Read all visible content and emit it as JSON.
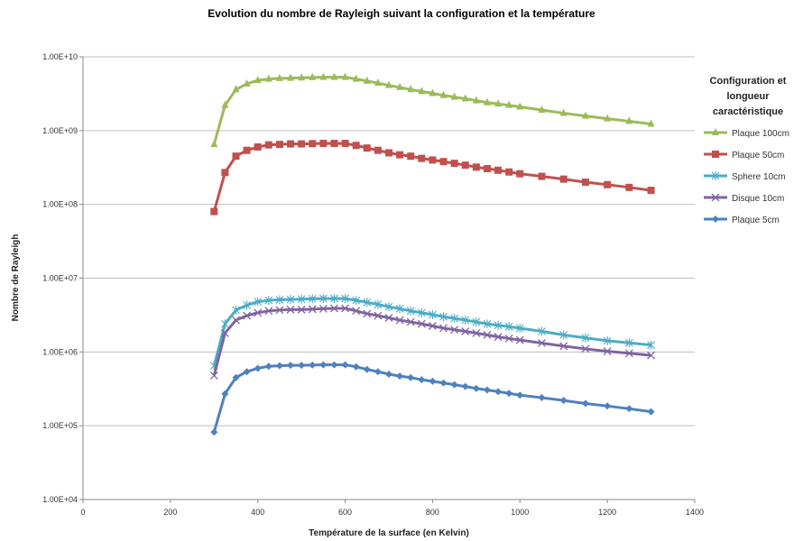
{
  "chart_data": {
    "type": "line",
    "title": "Evolution du nombre de Rayleigh suivant la configuration et la température",
    "xlabel": "Température de la surface (en Kelvin)",
    "ylabel": "Nombre de Rayleigh",
    "xlim": [
      0,
      1400
    ],
    "ylim": [
      10000,
      10000000000
    ],
    "y_scale": "log",
    "grid": "horizontal",
    "legend_position": "right",
    "legend_title": [
      "Configuration et",
      "longueur",
      "caractéristique"
    ],
    "xticks": [
      0,
      200,
      400,
      600,
      800,
      1000,
      1200,
      1400
    ],
    "xtick_labels": [
      "0",
      "200",
      "400",
      "600",
      "800",
      "1000",
      "1200",
      "1400"
    ],
    "yticks": [
      10000,
      100000,
      1000000,
      10000000,
      100000000,
      1000000000,
      10000000000
    ],
    "ytick_labels": [
      "1.00E+04",
      "1.00E+05",
      "1.00E+06",
      "1.00E+07",
      "1.00E+08",
      "1.00E+09",
      "1.00E+10"
    ],
    "x": [
      300,
      325,
      350,
      375,
      400,
      425,
      450,
      475,
      500,
      525,
      550,
      575,
      600,
      625,
      650,
      675,
      700,
      725,
      750,
      775,
      800,
      825,
      850,
      875,
      900,
      925,
      950,
      975,
      1000,
      1050,
      1100,
      1150,
      1200,
      1250,
      1300
    ],
    "series": [
      {
        "name": "Plaque 100cm",
        "color": "#9BBB59",
        "marker": "triangle",
        "values": [
          650000000,
          2200000000,
          3600000000,
          4300000000,
          4800000000,
          5000000000,
          5100000000,
          5150000000,
          5200000000,
          5250000000,
          5300000000,
          5300000000,
          5300000000,
          5000000000,
          4700000000,
          4400000000,
          4100000000,
          3850000000,
          3600000000,
          3400000000,
          3200000000,
          3000000000,
          2850000000,
          2700000000,
          2550000000,
          2400000000,
          2300000000,
          2200000000,
          2100000000,
          1900000000,
          1720000000,
          1580000000,
          1450000000,
          1340000000,
          1230000000
        ]
      },
      {
        "name": "Plaque 50cm",
        "color": "#C0504D",
        "marker": "square",
        "values": [
          80000000,
          270000000,
          450000000,
          540000000,
          600000000,
          640000000,
          650000000,
          660000000,
          660000000,
          665000000,
          670000000,
          670000000,
          670000000,
          630000000,
          580000000,
          540000000,
          500000000,
          470000000,
          450000000,
          420000000,
          400000000,
          380000000,
          360000000,
          340000000,
          320000000,
          305000000,
          290000000,
          275000000,
          260000000,
          240000000,
          220000000,
          200000000,
          185000000,
          170000000,
          155000000
        ]
      },
      {
        "name": "Sphere 10cm",
        "color": "#4BACC6",
        "marker": "star",
        "values": [
          650000,
          2400000,
          3700000,
          4300000,
          4800000,
          5000000,
          5100000,
          5150000,
          5200000,
          5250000,
          5300000,
          5300000,
          5300000,
          5000000,
          4700000,
          4400000,
          4100000,
          3850000,
          3600000,
          3400000,
          3200000,
          3000000,
          2850000,
          2700000,
          2550000,
          2400000,
          2300000,
          2200000,
          2100000,
          1900000,
          1700000,
          1550000,
          1420000,
          1330000,
          1240000
        ]
      },
      {
        "name": "Disque 10cm",
        "color": "#8064A2",
        "marker": "x",
        "values": [
          480000,
          1800000,
          2700000,
          3100000,
          3400000,
          3600000,
          3700000,
          3750000,
          3750000,
          3800000,
          3850000,
          3900000,
          3900000,
          3600000,
          3300000,
          3100000,
          2900000,
          2700000,
          2550000,
          2400000,
          2250000,
          2100000,
          2000000,
          1900000,
          1800000,
          1700000,
          1600000,
          1520000,
          1450000,
          1320000,
          1200000,
          1100000,
          1020000,
          960000,
          900000
        ]
      },
      {
        "name": "Plaque 5cm",
        "color": "#4F81BD",
        "marker": "diamond",
        "values": [
          82000,
          270000,
          450000,
          540000,
          600000,
          640000,
          650000,
          660000,
          660000,
          665000,
          670000,
          670000,
          670000,
          630000,
          580000,
          540000,
          500000,
          470000,
          450000,
          420000,
          400000,
          380000,
          360000,
          340000,
          320000,
          305000,
          290000,
          275000,
          260000,
          240000,
          220000,
          200000,
          185000,
          170000,
          155000
        ]
      }
    ]
  }
}
